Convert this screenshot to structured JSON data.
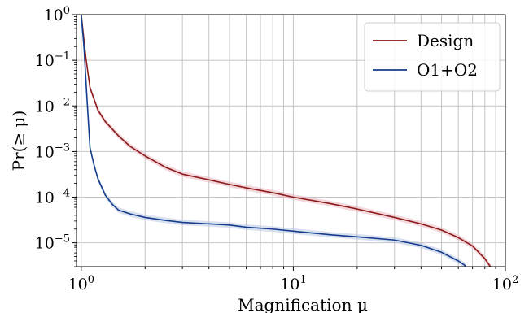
{
  "chart_data": {
    "type": "line",
    "xlabel": "Magnification μ",
    "ylabel": "Pr(≥ μ)",
    "xscale": "log",
    "yscale": "log",
    "xlim": [
      0.95,
      100
    ],
    "ylim": [
      3e-06,
      1
    ],
    "grid": true,
    "legend_position": "top-right",
    "x_ticks": [
      {
        "value": 1,
        "base": "10",
        "exp": "0"
      },
      {
        "value": 10,
        "base": "10",
        "exp": "1"
      },
      {
        "value": 100,
        "base": "10",
        "exp": "2"
      }
    ],
    "y_ticks": [
      {
        "value": 1,
        "base": "10",
        "exp": "0"
      },
      {
        "value": 0.1,
        "base": "10",
        "exp": "−1"
      },
      {
        "value": 0.01,
        "base": "10",
        "exp": "−2"
      },
      {
        "value": 0.001,
        "base": "10",
        "exp": "−3"
      },
      {
        "value": 0.0001,
        "base": "10",
        "exp": "−4"
      },
      {
        "value": 1e-05,
        "base": "10",
        "exp": "−5"
      }
    ],
    "series": [
      {
        "name": "Design",
        "color": "#8b1a1a",
        "band_color": "#e9b7bf",
        "x": [
          1.0,
          1.05,
          1.1,
          1.2,
          1.3,
          1.5,
          1.7,
          2,
          2.5,
          3,
          4,
          5,
          6,
          8,
          10,
          15,
          20,
          30,
          40,
          50,
          60,
          70,
          80,
          85
        ],
        "y": [
          1.0,
          0.12,
          0.025,
          0.008,
          0.0045,
          0.0022,
          0.0013,
          0.0008,
          0.00045,
          0.00032,
          0.00024,
          0.00019,
          0.00016,
          0.000125,
          0.0001,
          7.2e-05,
          5.5e-05,
          3.6e-05,
          2.6e-05,
          1.9e-05,
          1.3e-05,
          8.5e-06,
          4.5e-06,
          3e-06
        ]
      },
      {
        "name": "O1+O2",
        "color": "#143c8c",
        "band_color": "#b9c6e2",
        "x": [
          1.0,
          1.03,
          1.06,
          1.1,
          1.15,
          1.2,
          1.3,
          1.4,
          1.5,
          1.7,
          2,
          2.5,
          3,
          4,
          5,
          6,
          8,
          10,
          15,
          20,
          30,
          40,
          50,
          60,
          65
        ],
        "y": [
          1.0,
          0.2,
          0.02,
          0.0012,
          0.0005,
          0.00025,
          0.00011,
          7e-05,
          5.2e-05,
          4.3e-05,
          3.6e-05,
          3.1e-05,
          2.8e-05,
          2.6e-05,
          2.45e-05,
          2.2e-05,
          2e-05,
          1.8e-05,
          1.5e-05,
          1.35e-05,
          1.15e-05,
          8.8e-06,
          6.2e-06,
          4e-06,
          3.1e-06
        ]
      }
    ]
  }
}
